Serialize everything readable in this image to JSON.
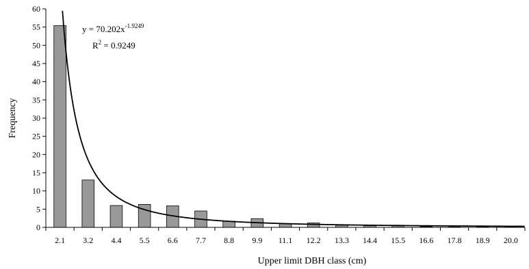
{
  "chart_data": {
    "type": "bar",
    "title": "",
    "xlabel": "Upper limit DBH class (cm)",
    "ylabel": "Frequency",
    "ylim": [
      0,
      60
    ],
    "yticks": [
      "0",
      "5",
      "10",
      "15",
      "20",
      "25",
      "30",
      "35",
      "40",
      "45",
      "50",
      "55",
      "60"
    ],
    "categories": [
      "2.1",
      "3.2",
      "4.4",
      "5.5",
      "6.6",
      "7.7",
      "8.8",
      "9.9",
      "11.1",
      "12.2",
      "13.3",
      "14.4",
      "15.5",
      "16.6",
      "17.8",
      "18.9",
      "20.0"
    ],
    "values": [
      55.4,
      13.0,
      6.0,
      6.3,
      5.9,
      4.5,
      1.7,
      2.4,
      1.0,
      1.2,
      0.6,
      0.5,
      0.6,
      0.2,
      0.1,
      0.1,
      0.1
    ],
    "bar_color": "#999999",
    "trendline": {
      "type": "power",
      "a": 70.202,
      "b": -1.9249,
      "equation_prefix": "y = 70.202x",
      "equation_exponent": "-1.9249",
      "r2_prefix": "R",
      "r2_exponent": "2",
      "r2_value": " = 0.9249",
      "color": "#000000"
    },
    "grid": false,
    "legend": "none"
  }
}
